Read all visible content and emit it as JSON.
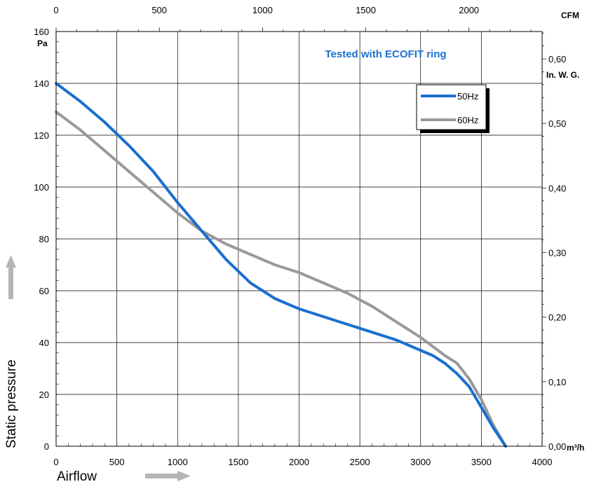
{
  "chart_data": {
    "type": "line",
    "title": "Tested with ECOFIT ring",
    "title_color": "#1a6fcf",
    "xlabel": "Airflow",
    "ylabel": "Static pressure",
    "x_unit": "m³/h",
    "y_unit": "Pa",
    "x_top_unit": "CFM",
    "y_right_unit": "In. W. G.",
    "xlim": [
      0,
      4000
    ],
    "ylim": [
      0,
      160
    ],
    "x_ticks": [
      "0",
      "500",
      "1000",
      "1500",
      "2000",
      "2500",
      "3000",
      "3500",
      "4000"
    ],
    "y_ticks": [
      "0",
      "20",
      "40",
      "60",
      "80",
      "100",
      "120",
      "140",
      "160"
    ],
    "x_top_ticks": [
      "0",
      "500",
      "1000",
      "1500",
      "2000"
    ],
    "y_right_ticks": [
      "0,00",
      "0,10",
      "0,20",
      "0,30",
      "0,40",
      "0,50",
      "0,60"
    ],
    "grid": true,
    "legend_position": "top-right",
    "series": [
      {
        "name": "50Hz",
        "color": "#1a6fcf",
        "x": [
          0,
          200,
          400,
          600,
          800,
          1000,
          1200,
          1400,
          1600,
          1800,
          2000,
          2200,
          2400,
          2600,
          2800,
          3000,
          3100,
          3200,
          3300,
          3400,
          3500,
          3600,
          3700
        ],
        "y": [
          140,
          133,
          125,
          116,
          106,
          94,
          83,
          72,
          63,
          57,
          53,
          50,
          47,
          44,
          41,
          37,
          35,
          32,
          28,
          23,
          15,
          7,
          0
        ]
      },
      {
        "name": "60Hz",
        "color": "#999999",
        "x": [
          0,
          200,
          400,
          600,
          800,
          1000,
          1200,
          1400,
          1600,
          1800,
          2000,
          2200,
          2400,
          2600,
          2800,
          3000,
          3200,
          3300,
          3400,
          3500,
          3600,
          3700
        ],
        "y": [
          129,
          122,
          114,
          106,
          98,
          90,
          83,
          78,
          74,
          70,
          67,
          63,
          59,
          54,
          48,
          42,
          35,
          32,
          26,
          18,
          8,
          0
        ]
      }
    ]
  }
}
